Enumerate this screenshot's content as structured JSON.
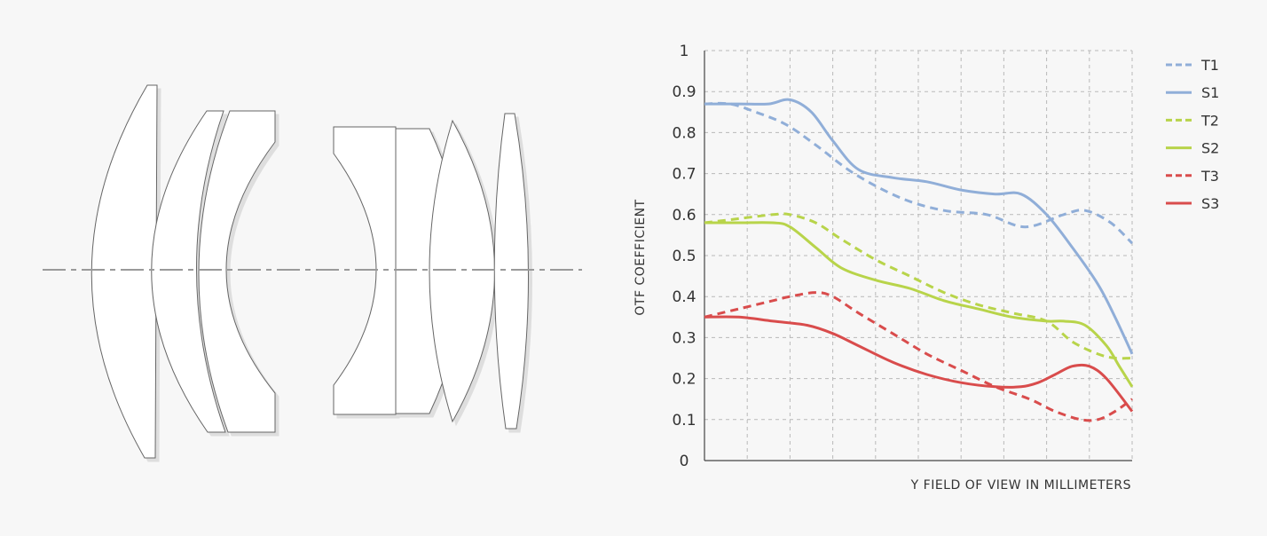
{
  "lens": {
    "elements": [
      "element-1",
      "element-2",
      "element-3",
      "element-4",
      "element-5",
      "element-6",
      "element-7"
    ]
  },
  "chart_data": {
    "type": "line",
    "title": "",
    "xlabel": "Y FIELD OF VIEW IN MILLIMETERS",
    "ylabel": "OTF COEFFICIENT",
    "xlim": [
      0,
      10
    ],
    "ylim": [
      0,
      1
    ],
    "x_gridlines": 10,
    "yticks": [
      "0",
      "0.1",
      "0.2",
      "0.3",
      "0.4",
      "0.5",
      "0.6",
      "0.7",
      "0.8",
      "0.9",
      "1"
    ],
    "grid": true,
    "grid_style": "dashed",
    "legend_position": "right",
    "series": [
      {
        "name": "T1",
        "color": "#90aed8",
        "dashed": true,
        "x": [
          0,
          0.6,
          1.2,
          1.9,
          2.6,
          3.5,
          4.6,
          5.6,
          6.6,
          7.5,
          8.4,
          8.9,
          9.5,
          10
        ],
        "y": [
          0.87,
          0.87,
          0.85,
          0.82,
          0.77,
          0.7,
          0.64,
          0.61,
          0.6,
          0.57,
          0.6,
          0.61,
          0.58,
          0.53
        ]
      },
      {
        "name": "S1",
        "color": "#90aed8",
        "dashed": false,
        "x": [
          0,
          0.8,
          1.5,
          2.0,
          2.5,
          3.0,
          3.6,
          4.4,
          5.2,
          6.0,
          6.8,
          7.4,
          8.0,
          8.6,
          9.2,
          9.6,
          10
        ],
        "y": [
          0.87,
          0.87,
          0.87,
          0.88,
          0.85,
          0.78,
          0.71,
          0.69,
          0.68,
          0.66,
          0.65,
          0.65,
          0.6,
          0.52,
          0.43,
          0.35,
          0.26
        ]
      },
      {
        "name": "T2",
        "color": "#b8d44a",
        "dashed": true,
        "x": [
          0,
          0.8,
          1.6,
          2.0,
          2.6,
          3.2,
          4.0,
          4.8,
          5.6,
          6.4,
          7.2,
          8.0,
          8.6,
          9.2,
          9.6,
          10
        ],
        "y": [
          0.58,
          0.59,
          0.6,
          0.6,
          0.58,
          0.54,
          0.49,
          0.45,
          0.41,
          0.38,
          0.36,
          0.34,
          0.29,
          0.26,
          0.25,
          0.25
        ]
      },
      {
        "name": "S2",
        "color": "#b8d44a",
        "dashed": false,
        "x": [
          0,
          0.8,
          1.6,
          2.0,
          2.6,
          3.2,
          4.0,
          4.8,
          5.6,
          6.4,
          7.2,
          8.0,
          8.4,
          8.9,
          9.4,
          9.7,
          10
        ],
        "y": [
          0.58,
          0.58,
          0.58,
          0.57,
          0.52,
          0.47,
          0.44,
          0.42,
          0.39,
          0.37,
          0.35,
          0.34,
          0.34,
          0.33,
          0.28,
          0.23,
          0.18
        ]
      },
      {
        "name": "T3",
        "color": "#d94c4c",
        "dashed": true,
        "x": [
          0,
          0.8,
          1.6,
          2.0,
          2.6,
          3.0,
          3.6,
          4.4,
          5.2,
          6.0,
          6.8,
          7.6,
          8.2,
          8.8,
          9.2,
          9.6,
          10
        ],
        "y": [
          0.35,
          0.37,
          0.39,
          0.4,
          0.41,
          0.4,
          0.36,
          0.31,
          0.26,
          0.22,
          0.18,
          0.15,
          0.12,
          0.1,
          0.1,
          0.12,
          0.15
        ]
      },
      {
        "name": "S3",
        "color": "#d94c4c",
        "dashed": false,
        "x": [
          0,
          0.8,
          1.6,
          2.4,
          3.0,
          3.6,
          4.4,
          5.2,
          6.0,
          6.8,
          7.4,
          7.8,
          8.2,
          8.6,
          9.0,
          9.4,
          10
        ],
        "y": [
          0.35,
          0.35,
          0.34,
          0.33,
          0.31,
          0.28,
          0.24,
          0.21,
          0.19,
          0.18,
          0.18,
          0.19,
          0.21,
          0.23,
          0.23,
          0.2,
          0.12
        ]
      }
    ]
  }
}
